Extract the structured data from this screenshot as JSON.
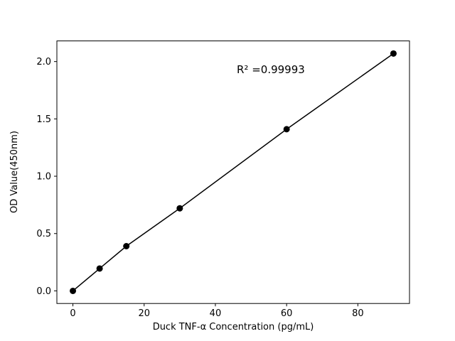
{
  "chart_data": {
    "type": "line",
    "title": "",
    "xlabel": "Duck TNF-α  Concentration (pg/mL)",
    "ylabel": "OD Value(450nm)",
    "x": [
      0,
      7.5,
      15,
      30,
      60,
      90
    ],
    "y": [
      0.0,
      0.195,
      0.39,
      0.72,
      1.41,
      2.07
    ],
    "xlim": [
      -4.5,
      94.5
    ],
    "ylim": [
      -0.11,
      2.18
    ],
    "xticks": [
      0,
      20,
      40,
      60,
      80
    ],
    "yticks": [
      0.0,
      0.5,
      1.0,
      1.5,
      2.0
    ],
    "annotation": {
      "text": "R² =0.99993",
      "x": 46,
      "y": 1.9
    },
    "line_color": "#000000",
    "marker_color": "#000000",
    "marker_shape": "circle",
    "grid": false,
    "legend": null,
    "background_color": "#ffffff"
  }
}
